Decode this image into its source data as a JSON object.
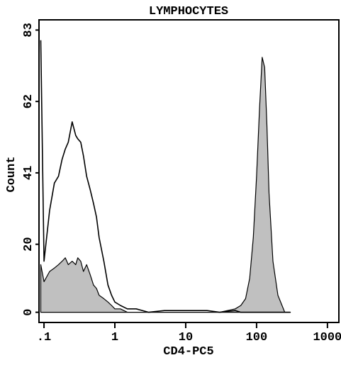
{
  "chart_data": {
    "type": "histogram-overlay",
    "title": "LYMPHOCYTES",
    "x_label": "CD4-PC5",
    "y_label": "Count",
    "log_x": true,
    "xlim": [
      0.085,
      1450
    ],
    "xticks": [
      {
        "value": 0.1,
        "label": ".1"
      },
      1,
      10,
      100,
      1000
    ],
    "ylim": [
      -3,
      86
    ],
    "yticks": [
      0,
      20,
      41,
      62,
      83
    ],
    "x": [
      0.09,
      0.1,
      0.12,
      0.14,
      0.16,
      0.18,
      0.2,
      0.22,
      0.25,
      0.28,
      0.3,
      0.33,
      0.36,
      0.4,
      0.45,
      0.5,
      0.55,
      0.6,
      0.7,
      0.8,
      0.9,
      1,
      1.2,
      1.5,
      2,
      3,
      5,
      10,
      20,
      30,
      50,
      60,
      70,
      80,
      90,
      100,
      110,
      120,
      130,
      140,
      150,
      170,
      200,
      250,
      300
    ],
    "series": [
      {
        "color": "#000000",
        "filled": false,
        "values": [
          80,
          15,
          30,
          38,
          40,
          45,
          48,
          50,
          56,
          52,
          51,
          50,
          46,
          40,
          36,
          32,
          28,
          22,
          15,
          8,
          5,
          3,
          2,
          1,
          1,
          0,
          0.5,
          0.5,
          0.5,
          0,
          0.5,
          0,
          0,
          0,
          0,
          0,
          0,
          0,
          0,
          0,
          0,
          0,
          0,
          0,
          0
        ]
      },
      {
        "color": "#c0c0c0",
        "filled": true,
        "values": [
          14,
          9,
          12,
          13,
          14,
          15,
          16,
          14,
          15,
          14,
          16,
          15,
          12,
          14,
          11,
          8,
          7,
          5,
          4,
          3,
          2,
          1,
          1,
          0,
          0,
          0,
          0,
          0,
          0,
          0,
          1,
          2,
          4,
          10,
          22,
          40,
          60,
          75,
          72,
          55,
          35,
          15,
          5,
          0,
          0
        ]
      }
    ]
  }
}
